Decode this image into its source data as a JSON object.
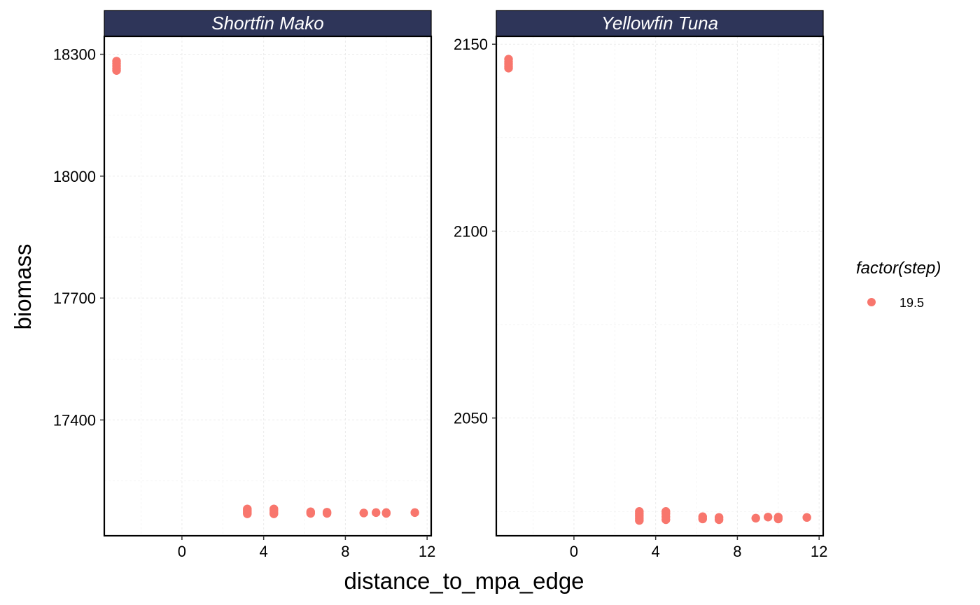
{
  "chart_data": {
    "type": "scatter",
    "facet_by": "species",
    "xlabel": "distance_to_mpa_edge",
    "ylabel": "biomass",
    "colors": {
      "point": "#F8766D",
      "strip": "#2E3559",
      "grid": "#ebebeb"
    },
    "legend": {
      "title": "factor(step)",
      "placement": "right",
      "entries": [
        {
          "label": "19.5",
          "color": "#F8766D"
        }
      ]
    },
    "panels": [
      {
        "title": "Shortfin Mako",
        "xlim": [
          -3.8,
          12.2
        ],
        "ylim": [
          17115,
          18344
        ],
        "xticks": [
          0,
          4,
          8,
          12
        ],
        "yticks": [
          17400,
          17700,
          18000,
          18300
        ],
        "points": [
          {
            "x": -3.2,
            "y": 18283
          },
          {
            "x": -3.2,
            "y": 18277
          },
          {
            "x": -3.2,
            "y": 18271
          },
          {
            "x": -3.2,
            "y": 18265
          },
          {
            "x": -3.2,
            "y": 18260
          },
          {
            "x": 3.2,
            "y": 17181
          },
          {
            "x": 3.2,
            "y": 17178
          },
          {
            "x": 3.2,
            "y": 17175
          },
          {
            "x": 3.2,
            "y": 17172
          },
          {
            "x": 3.2,
            "y": 17169
          },
          {
            "x": 4.5,
            "y": 17181
          },
          {
            "x": 4.5,
            "y": 17177
          },
          {
            "x": 4.5,
            "y": 17172
          },
          {
            "x": 4.5,
            "y": 17169
          },
          {
            "x": 6.3,
            "y": 17174
          },
          {
            "x": 6.3,
            "y": 17170
          },
          {
            "x": 7.1,
            "y": 17173
          },
          {
            "x": 7.1,
            "y": 17170
          },
          {
            "x": 8.9,
            "y": 17171
          },
          {
            "x": 9.5,
            "y": 17172
          },
          {
            "x": 10.0,
            "y": 17172
          },
          {
            "x": 10.0,
            "y": 17170
          },
          {
            "x": 11.4,
            "y": 17172
          }
        ]
      },
      {
        "title": "Yellowfin Tuna",
        "xlim": [
          -3.8,
          12.2
        ],
        "ylim": [
          2018.5,
          2152.1
        ],
        "xticks": [
          0,
          4,
          8,
          12
        ],
        "yticks": [
          2050,
          2100,
          2150
        ],
        "points": [
          {
            "x": -3.2,
            "y": 2146.0
          },
          {
            "x": -3.2,
            "y": 2145.3
          },
          {
            "x": -3.2,
            "y": 2144.7
          },
          {
            "x": -3.2,
            "y": 2144.1
          },
          {
            "x": -3.2,
            "y": 2143.6
          },
          {
            "x": 3.2,
            "y": 2025.0
          },
          {
            "x": 3.2,
            "y": 2024.4
          },
          {
            "x": 3.2,
            "y": 2023.8
          },
          {
            "x": 3.2,
            "y": 2023.2
          },
          {
            "x": 3.2,
            "y": 2022.6
          },
          {
            "x": 4.5,
            "y": 2025.0
          },
          {
            "x": 4.5,
            "y": 2024.4
          },
          {
            "x": 4.5,
            "y": 2023.6
          },
          {
            "x": 4.5,
            "y": 2022.8
          },
          {
            "x": 6.3,
            "y": 2023.6
          },
          {
            "x": 6.3,
            "y": 2023.0
          },
          {
            "x": 7.1,
            "y": 2023.4
          },
          {
            "x": 7.1,
            "y": 2022.8
          },
          {
            "x": 8.9,
            "y": 2023.2
          },
          {
            "x": 9.5,
            "y": 2023.5
          },
          {
            "x": 10.0,
            "y": 2023.5
          },
          {
            "x": 10.0,
            "y": 2023.0
          },
          {
            "x": 11.4,
            "y": 2023.4
          }
        ]
      }
    ]
  }
}
